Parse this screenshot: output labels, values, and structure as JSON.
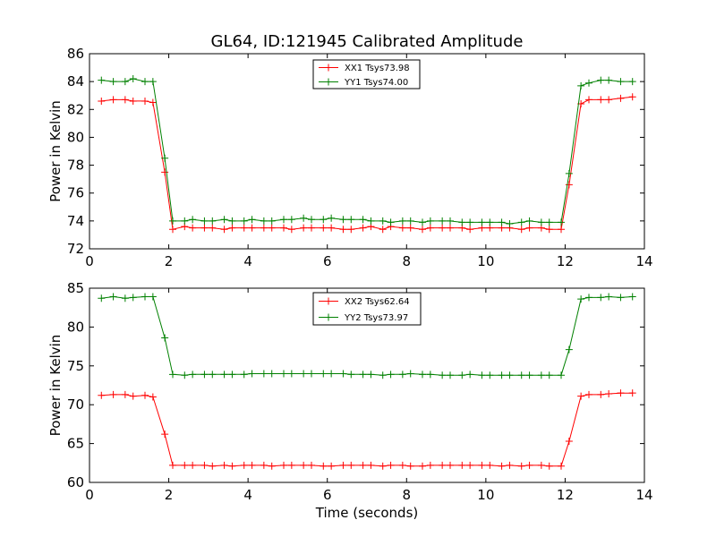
{
  "chart_data": [
    {
      "type": "line",
      "title": "GL64, ID:121945 Calibrated Amplitude",
      "xlabel": "",
      "ylabel": "Power in Kelvin",
      "xlim": [
        0,
        14
      ],
      "ylim": [
        72,
        86
      ],
      "xticks": [
        0,
        2,
        4,
        6,
        8,
        10,
        12,
        14
      ],
      "yticks": [
        72,
        74,
        76,
        78,
        80,
        82,
        84,
        86
      ],
      "grid": false,
      "legend": "top-center",
      "x": [
        0.3,
        0.6,
        0.9,
        1.1,
        1.4,
        1.6,
        1.9,
        2.1,
        2.4,
        2.6,
        2.9,
        3.1,
        3.4,
        3.6,
        3.9,
        4.1,
        4.4,
        4.6,
        4.9,
        5.1,
        5.4,
        5.6,
        5.9,
        6.1,
        6.4,
        6.6,
        6.9,
        7.1,
        7.4,
        7.6,
        7.9,
        8.1,
        8.4,
        8.6,
        8.9,
        9.1,
        9.4,
        9.6,
        9.9,
        10.1,
        10.4,
        10.6,
        10.9,
        11.1,
        11.4,
        11.6,
        11.9,
        12.1,
        12.4,
        12.6,
        12.9,
        13.1,
        13.4,
        13.7
      ],
      "series": [
        {
          "name": "XX1 Tsys73.98",
          "color": "#ff0000",
          "values": [
            82.6,
            82.7,
            82.7,
            82.6,
            82.6,
            82.5,
            77.5,
            73.4,
            73.6,
            73.5,
            73.5,
            73.5,
            73.4,
            73.5,
            73.5,
            73.5,
            73.5,
            73.5,
            73.5,
            73.4,
            73.5,
            73.5,
            73.5,
            73.5,
            73.4,
            73.4,
            73.5,
            73.6,
            73.4,
            73.6,
            73.5,
            73.5,
            73.4,
            73.5,
            73.5,
            73.5,
            73.5,
            73.4,
            73.5,
            73.5,
            73.5,
            73.5,
            73.4,
            73.5,
            73.5,
            73.4,
            73.4,
            76.6,
            82.4,
            82.7,
            82.7,
            82.7,
            82.8,
            82.9
          ]
        },
        {
          "name": "YY1 Tsys74.00",
          "color": "#008000",
          "values": [
            84.1,
            84.0,
            84.0,
            84.2,
            84.0,
            84.0,
            78.5,
            74.0,
            74.0,
            74.1,
            74.0,
            74.0,
            74.1,
            74.0,
            74.0,
            74.1,
            74.0,
            74.0,
            74.1,
            74.1,
            74.2,
            74.1,
            74.1,
            74.2,
            74.1,
            74.1,
            74.1,
            74.0,
            74.0,
            73.9,
            74.0,
            74.0,
            73.9,
            74.0,
            74.0,
            74.0,
            73.9,
            73.9,
            73.9,
            73.9,
            73.9,
            73.8,
            73.9,
            74.0,
            73.9,
            73.9,
            73.9,
            77.4,
            83.7,
            83.9,
            84.1,
            84.1,
            84.0,
            84.0
          ]
        }
      ]
    },
    {
      "type": "line",
      "title": "",
      "xlabel": "Time (seconds)",
      "ylabel": "Power in Kelvin",
      "xlim": [
        0,
        14
      ],
      "ylim": [
        60,
        85
      ],
      "xticks": [
        0,
        2,
        4,
        6,
        8,
        10,
        12,
        14
      ],
      "yticks": [
        60,
        65,
        70,
        75,
        80,
        85
      ],
      "grid": false,
      "legend": "top-center",
      "x": [
        0.3,
        0.6,
        0.9,
        1.1,
        1.4,
        1.6,
        1.9,
        2.1,
        2.4,
        2.6,
        2.9,
        3.1,
        3.4,
        3.6,
        3.9,
        4.1,
        4.4,
        4.6,
        4.9,
        5.1,
        5.4,
        5.6,
        5.9,
        6.1,
        6.4,
        6.6,
        6.9,
        7.1,
        7.4,
        7.6,
        7.9,
        8.1,
        8.4,
        8.6,
        8.9,
        9.1,
        9.4,
        9.6,
        9.9,
        10.1,
        10.4,
        10.6,
        10.9,
        11.1,
        11.4,
        11.6,
        11.9,
        12.1,
        12.4,
        12.6,
        12.9,
        13.1,
        13.4,
        13.7
      ],
      "series": [
        {
          "name": "XX2 Tsys62.64",
          "color": "#ff0000",
          "values": [
            71.2,
            71.3,
            71.3,
            71.1,
            71.2,
            71.0,
            66.2,
            62.2,
            62.2,
            62.2,
            62.2,
            62.1,
            62.2,
            62.1,
            62.2,
            62.2,
            62.2,
            62.1,
            62.2,
            62.2,
            62.2,
            62.2,
            62.1,
            62.1,
            62.2,
            62.2,
            62.2,
            62.2,
            62.1,
            62.2,
            62.2,
            62.1,
            62.1,
            62.2,
            62.2,
            62.2,
            62.2,
            62.2,
            62.2,
            62.2,
            62.1,
            62.2,
            62.1,
            62.2,
            62.2,
            62.1,
            62.1,
            65.3,
            71.1,
            71.3,
            71.3,
            71.4,
            71.5,
            71.5
          ]
        },
        {
          "name": "YY2 Tsys73.97",
          "color": "#008000",
          "values": [
            83.7,
            83.9,
            83.7,
            83.8,
            83.9,
            83.9,
            78.6,
            73.9,
            73.8,
            73.9,
            73.9,
            73.9,
            73.9,
            73.9,
            73.9,
            74.0,
            74.0,
            74.0,
            74.0,
            74.0,
            74.0,
            74.0,
            74.0,
            74.0,
            74.0,
            73.9,
            73.9,
            73.9,
            73.8,
            73.9,
            73.9,
            74.0,
            73.9,
            73.9,
            73.8,
            73.8,
            73.8,
            73.9,
            73.8,
            73.8,
            73.8,
            73.8,
            73.8,
            73.8,
            73.8,
            73.8,
            73.8,
            77.1,
            83.6,
            83.8,
            83.8,
            83.9,
            83.8,
            83.9
          ]
        }
      ]
    }
  ]
}
